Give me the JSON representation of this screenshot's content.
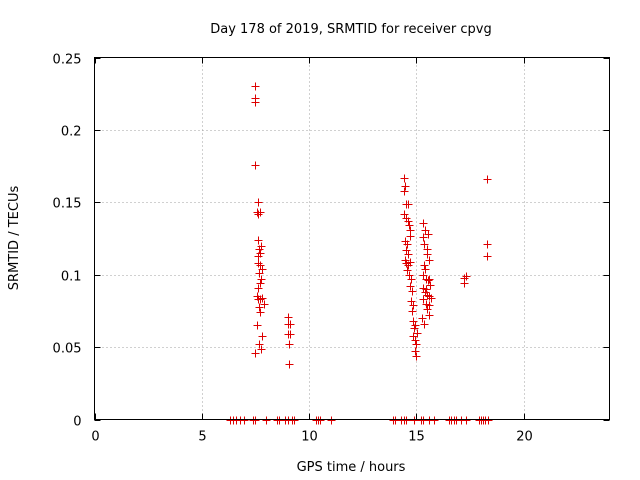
{
  "chart_data": {
    "type": "scatter",
    "title": "Day 178 of 2019, SRMTID for receiver cpvg",
    "xlabel": "GPS time / hours",
    "ylabel": "SRMTID / TECUs",
    "xlim": [
      0,
      24
    ],
    "ylim": [
      0,
      0.25
    ],
    "xticks": [
      {
        "value": 0,
        "label": "0"
      },
      {
        "value": 5,
        "label": "5"
      },
      {
        "value": 10,
        "label": "10"
      },
      {
        "value": 15,
        "label": "15"
      },
      {
        "value": 20,
        "label": "20"
      }
    ],
    "yticks": [
      {
        "value": 0,
        "label": "0"
      },
      {
        "value": 0.05,
        "label": "0.05"
      },
      {
        "value": 0.1,
        "label": "0.1"
      },
      {
        "value": 0.15,
        "label": "0.15"
      },
      {
        "value": 0.2,
        "label": "0.2"
      },
      {
        "value": 0.25,
        "label": "0.25"
      }
    ],
    "grid": true,
    "marker": "plus",
    "series": [
      {
        "name": "SRMTID",
        "color": "#dd0000",
        "points": [
          [
            6.3,
            0
          ],
          [
            6.45,
            0
          ],
          [
            6.6,
            0
          ],
          [
            6.8,
            0
          ],
          [
            6.95,
            0
          ],
          [
            7.4,
            0
          ],
          [
            7.5,
            0
          ],
          [
            8.0,
            0
          ],
          [
            8.5,
            0
          ],
          [
            8.6,
            0
          ],
          [
            8.9,
            0
          ],
          [
            9.0,
            0
          ],
          [
            9.2,
            0
          ],
          [
            9.3,
            0
          ],
          [
            10.3,
            0
          ],
          [
            10.4,
            0
          ],
          [
            10.5,
            0
          ],
          [
            11.0,
            0
          ],
          [
            13.9,
            0
          ],
          [
            14.0,
            0
          ],
          [
            14.3,
            0
          ],
          [
            14.4,
            0
          ],
          [
            14.5,
            0
          ],
          [
            14.9,
            0
          ],
          [
            15.2,
            0
          ],
          [
            15.3,
            0
          ],
          [
            15.6,
            0
          ],
          [
            15.8,
            0
          ],
          [
            16.5,
            0
          ],
          [
            16.6,
            0
          ],
          [
            16.75,
            0
          ],
          [
            16.85,
            0
          ],
          [
            17.1,
            0
          ],
          [
            17.3,
            0
          ],
          [
            17.9,
            0
          ],
          [
            18.0,
            0
          ],
          [
            18.1,
            0
          ],
          [
            18.2,
            0
          ],
          [
            18.35,
            0
          ],
          [
            7.5,
            0.23
          ],
          [
            7.5,
            0.222
          ],
          [
            7.5,
            0.219
          ],
          [
            7.5,
            0.176
          ],
          [
            7.55,
            0.143
          ],
          [
            7.6,
            0.15
          ],
          [
            7.6,
            0.142
          ],
          [
            7.7,
            0.143
          ],
          [
            7.6,
            0.124
          ],
          [
            7.65,
            0.118
          ],
          [
            7.6,
            0.113
          ],
          [
            7.7,
            0.115
          ],
          [
            7.75,
            0.12
          ],
          [
            7.6,
            0.108
          ],
          [
            7.7,
            0.107
          ],
          [
            7.8,
            0.104
          ],
          [
            7.65,
            0.101
          ],
          [
            7.75,
            0.097
          ],
          [
            7.7,
            0.094
          ],
          [
            7.6,
            0.091
          ],
          [
            7.55,
            0.085
          ],
          [
            7.6,
            0.083
          ],
          [
            7.7,
            0.083
          ],
          [
            7.8,
            0.084
          ],
          [
            7.65,
            0.078
          ],
          [
            7.7,
            0.074
          ],
          [
            7.55,
            0.065
          ],
          [
            7.8,
            0.058
          ],
          [
            7.65,
            0.052
          ],
          [
            7.5,
            0.046
          ],
          [
            7.75,
            0.049
          ],
          [
            7.9,
            0.08
          ],
          [
            9.0,
            0.071
          ],
          [
            9.0,
            0.066
          ],
          [
            9.1,
            0.066
          ],
          [
            9.0,
            0.059
          ],
          [
            9.1,
            0.059
          ],
          [
            9.05,
            0.052
          ],
          [
            9.05,
            0.038
          ],
          [
            14.4,
            0.167
          ],
          [
            14.45,
            0.161
          ],
          [
            14.4,
            0.158
          ],
          [
            14.5,
            0.149
          ],
          [
            14.6,
            0.149
          ],
          [
            14.4,
            0.142
          ],
          [
            14.5,
            0.139
          ],
          [
            14.6,
            0.137
          ],
          [
            14.65,
            0.134
          ],
          [
            14.7,
            0.131
          ],
          [
            14.7,
            0.127
          ],
          [
            14.45,
            0.123
          ],
          [
            14.55,
            0.121
          ],
          [
            14.5,
            0.117
          ],
          [
            14.6,
            0.114
          ],
          [
            14.45,
            0.11
          ],
          [
            14.5,
            0.108
          ],
          [
            14.6,
            0.107
          ],
          [
            14.7,
            0.109
          ],
          [
            14.55,
            0.103
          ],
          [
            14.65,
            0.1
          ],
          [
            14.75,
            0.097
          ],
          [
            14.7,
            0.092
          ],
          [
            14.8,
            0.089
          ],
          [
            14.75,
            0.082
          ],
          [
            14.85,
            0.079
          ],
          [
            14.8,
            0.075
          ],
          [
            14.85,
            0.068
          ],
          [
            14.95,
            0.065
          ],
          [
            14.9,
            0.063
          ],
          [
            14.85,
            0.058
          ],
          [
            14.95,
            0.055
          ],
          [
            15.0,
            0.052
          ],
          [
            14.95,
            0.047
          ],
          [
            15.0,
            0.044
          ],
          [
            15.05,
            0.06
          ],
          [
            15.3,
            0.136
          ],
          [
            15.4,
            0.131
          ],
          [
            15.3,
            0.126
          ],
          [
            15.35,
            0.121
          ],
          [
            15.5,
            0.118
          ],
          [
            15.5,
            0.114
          ],
          [
            15.6,
            0.11
          ],
          [
            15.4,
            0.104
          ],
          [
            15.3,
            0.1
          ],
          [
            15.45,
            0.097
          ],
          [
            15.55,
            0.096
          ],
          [
            15.65,
            0.093
          ],
          [
            15.3,
            0.091
          ],
          [
            15.4,
            0.088
          ],
          [
            15.5,
            0.086
          ],
          [
            15.6,
            0.085
          ],
          [
            15.7,
            0.084
          ],
          [
            15.45,
            0.08
          ],
          [
            15.6,
            0.079
          ],
          [
            15.5,
            0.076
          ],
          [
            15.6,
            0.072
          ],
          [
            15.25,
            0.07
          ],
          [
            15.35,
            0.066
          ],
          [
            15.6,
            0.097
          ],
          [
            15.55,
            0.128
          ],
          [
            15.3,
            0.083
          ],
          [
            15.45,
            0.09
          ],
          [
            15.35,
            0.107
          ],
          [
            17.3,
            0.099
          ],
          [
            17.2,
            0.098
          ],
          [
            17.2,
            0.094
          ],
          [
            18.3,
            0.166
          ],
          [
            18.3,
            0.121
          ],
          [
            18.3,
            0.113
          ]
        ]
      }
    ]
  }
}
